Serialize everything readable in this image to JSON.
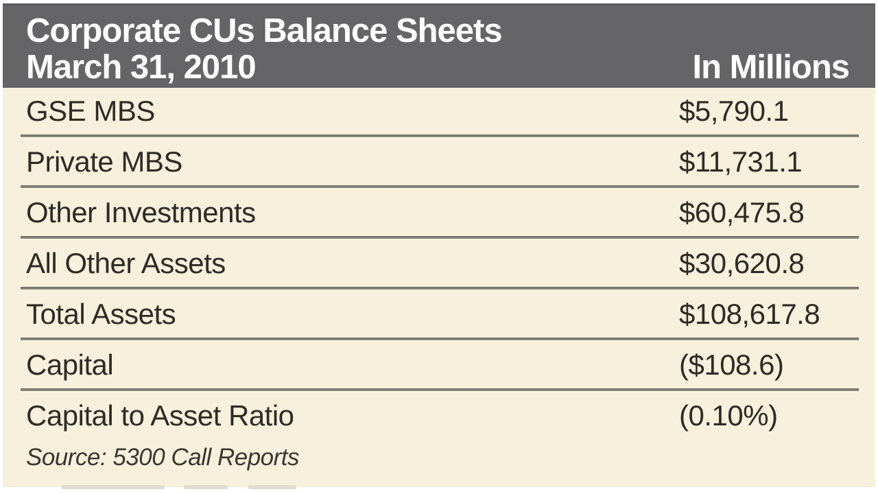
{
  "header": {
    "title_line1": "Corporate CUs Balance Sheets",
    "title_line2": "March 31, 2010",
    "units_label": "In Millions"
  },
  "rows": [
    {
      "label": "GSE MBS",
      "value": "$5,790.1"
    },
    {
      "label": "Private MBS",
      "value": "$11,731.1"
    },
    {
      "label": "Other Investments",
      "value": "$60,475.8"
    },
    {
      "label": "All Other Assets",
      "value": "$30,620.8"
    },
    {
      "label": "Total Assets",
      "value": "$108,617.8"
    },
    {
      "label": "Capital",
      "value": "($108.6)"
    },
    {
      "label": "Capital to Asset Ratio",
      "value": "(0.10%)"
    }
  ],
  "source": "Source: 5300 Call Reports",
  "colors": {
    "header_bg": "#656568",
    "header_border_top": "#59595d",
    "header_text": "#ffffff",
    "body_bg": "#f7f0dc",
    "body_text": "#2e2b26",
    "divider": "#7e7b6b"
  },
  "chart_data": {
    "type": "table",
    "title": "Corporate CUs Balance Sheets",
    "subtitle": "March 31, 2010",
    "units": "In Millions",
    "columns": [
      "Item",
      "In Millions"
    ],
    "rows": [
      [
        "GSE MBS",
        "$5,790.1"
      ],
      [
        "Private MBS",
        "$11,731.1"
      ],
      [
        "Other Investments",
        "$60,475.8"
      ],
      [
        "All Other Assets",
        "$30,620.8"
      ],
      [
        "Total Assets",
        "$108,617.8"
      ],
      [
        "Capital",
        "($108.6)"
      ],
      [
        "Capital to Asset Ratio",
        "(0.10%)"
      ]
    ],
    "values_numeric_millions": [
      5790.1,
      11731.1,
      60475.8,
      30620.8,
      108617.8,
      -108.6
    ],
    "capital_to_asset_ratio_percent": -0.1,
    "source": "Source: 5300 Call Reports",
    "legend_position": "none",
    "grid": "horizontal-dividers"
  }
}
